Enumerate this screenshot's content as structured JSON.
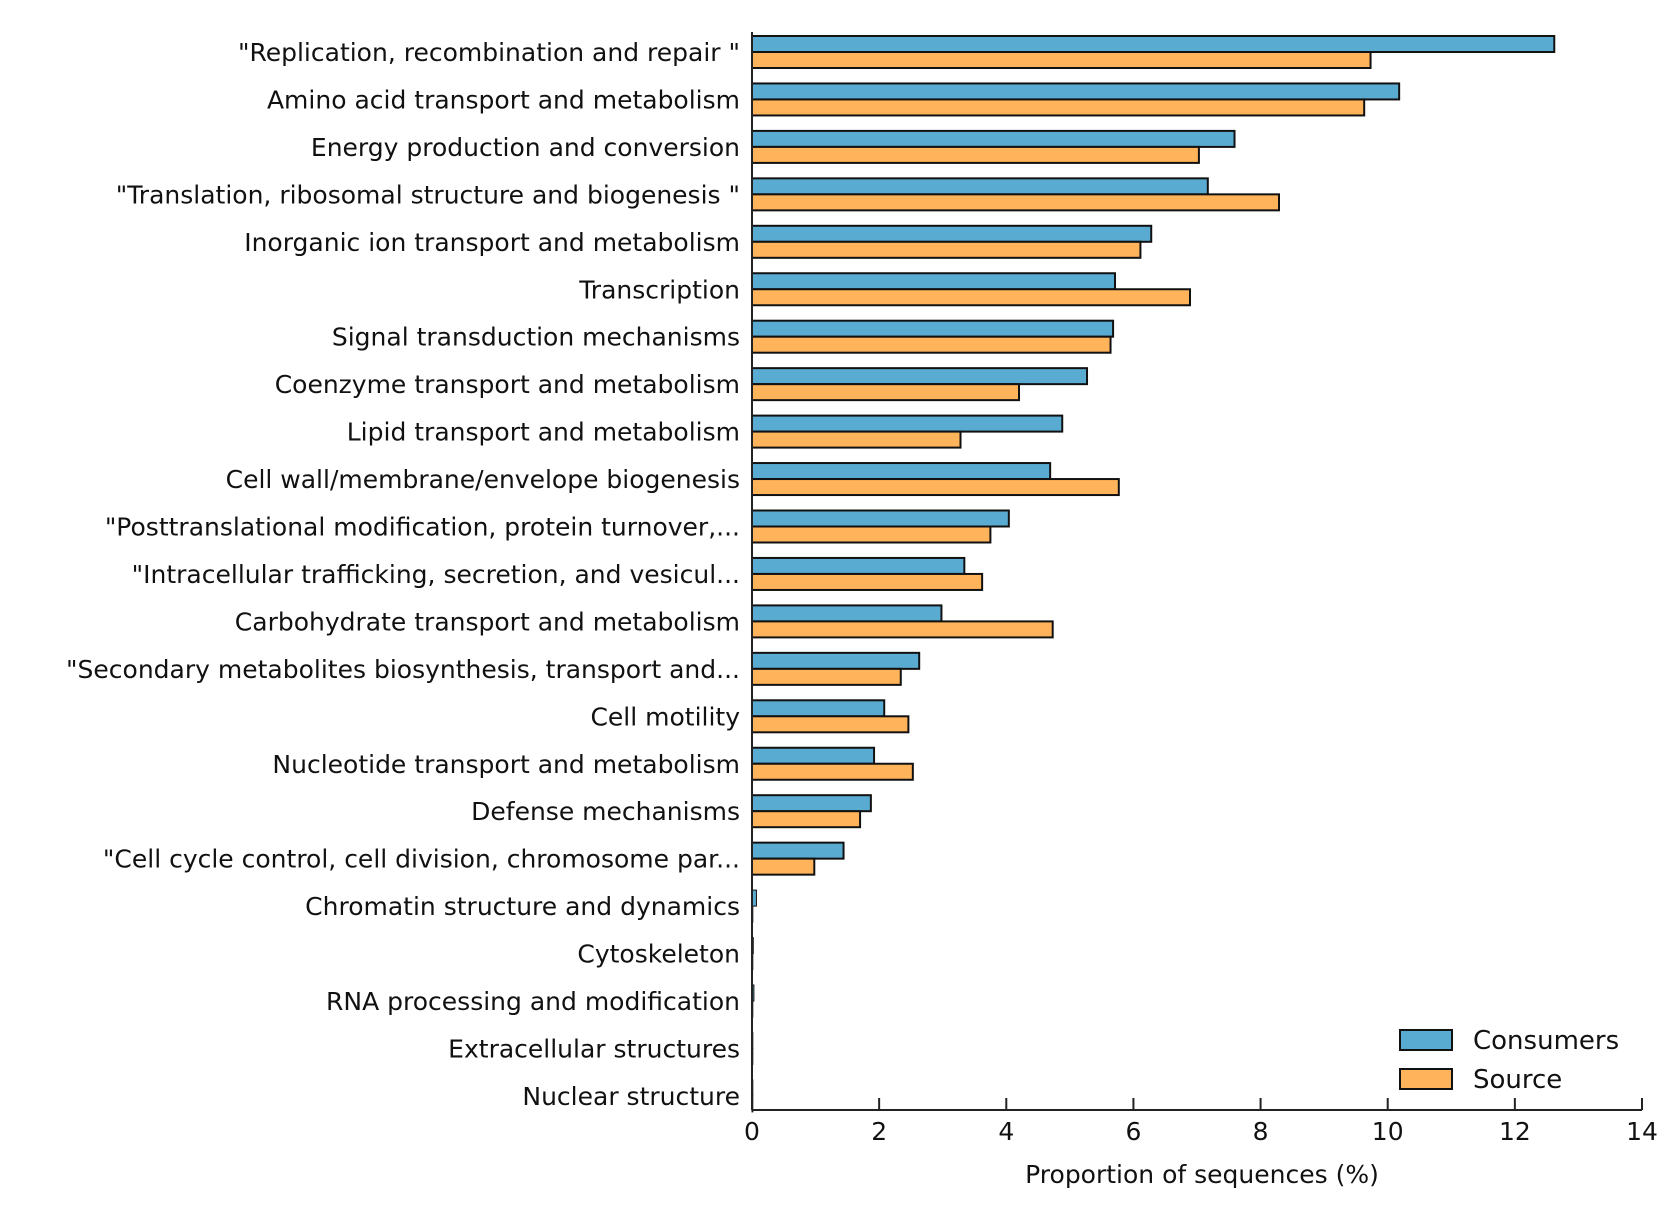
{
  "chart_data": {
    "type": "bar",
    "orientation": "horizontal",
    "title": "",
    "xlabel": "Proportion of sequences (%)",
    "ylabel": "",
    "xlim": [
      0,
      14
    ],
    "xticks": [
      "0",
      "2",
      "4",
      "6",
      "8",
      "10",
      "12",
      "14"
    ],
    "grid": false,
    "legend_position": "bottom-right",
    "categories": [
      "\"Replication, recombination and repair \"",
      "Amino acid transport and metabolism",
      "Energy production and conversion",
      "\"Translation, ribosomal structure and biogenesis \"",
      "Inorganic ion transport and metabolism",
      "Transcription",
      "Signal transduction mechanisms",
      "Coenzyme transport and metabolism",
      "Lipid transport and metabolism",
      "Cell wall/membrane/envelope biogenesis",
      "\"Posttranslational modification, protein turnover,...",
      "\"Intracellular trafficking, secretion, and vesicul...",
      "Carbohydrate transport and metabolism",
      "\"Secondary metabolites biosynthesis, transport and...",
      "Cell motility",
      "Nucleotide transport and metabolism",
      "Defense mechanisms",
      "\"Cell cycle control, cell division, chromosome par...",
      "Chromatin structure and dynamics",
      "Cytoskeleton",
      "RNA processing and modification",
      "Extracellular structures",
      "Nuclear structure"
    ],
    "series": [
      {
        "name": "Consumers",
        "color": "#5aabd1",
        "values": [
          12.62,
          10.18,
          7.59,
          7.17,
          6.28,
          5.71,
          5.68,
          5.27,
          4.88,
          4.69,
          4.04,
          3.34,
          2.98,
          2.63,
          2.08,
          1.92,
          1.87,
          1.44,
          0.07,
          0.02,
          0.03,
          0.01,
          0.0
        ]
      },
      {
        "name": "Source",
        "color": "#ffb35a",
        "values": [
          9.73,
          9.63,
          7.03,
          8.29,
          6.11,
          6.89,
          5.64,
          4.2,
          3.28,
          5.77,
          3.75,
          3.62,
          4.73,
          2.34,
          2.46,
          2.53,
          1.7,
          0.98,
          0.0,
          0.0,
          0.0,
          0.0,
          0.0
        ]
      }
    ]
  }
}
